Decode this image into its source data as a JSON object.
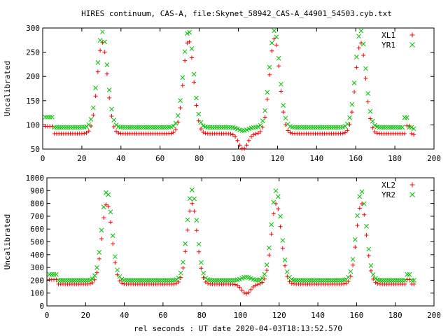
{
  "title": "HIRES continuum, CAS-A, file:Skynet_58942_CAS-A_44901_54503.cyb.txt",
  "xlabel": "rel seconds : UT date 2020-04-03T18:13:52.570",
  "colors": {
    "red": "#ff0000",
    "green": "#00c000"
  },
  "chart_data": [
    {
      "type": "scatter",
      "ylabel": "Uncalibrated",
      "xlim": [
        0,
        200
      ],
      "ylim": [
        50,
        300
      ],
      "xticks": [
        "0",
        "20",
        "40",
        "60",
        "80",
        "100",
        "120",
        "140",
        "160",
        "180",
        "200"
      ],
      "yticks": [
        "50",
        "100",
        "150",
        "200",
        "250",
        "300"
      ],
      "legend_position": "top-right",
      "series": [
        {
          "name": "XL1",
          "marker": "+",
          "color": "#ff0000",
          "baseline": 82,
          "peaks": [
            [
              30.5,
              270
            ],
            [
              74.5,
              275
            ],
            [
              118.5,
              278
            ],
            [
              162.5,
              270
            ]
          ],
          "dip": [
            102.5,
            50
          ],
          "start": 97,
          "end": 80,
          "spike": [
            187,
            98
          ]
        },
        {
          "name": "YR1",
          "marker": "x",
          "color": "#00c000",
          "baseline": 95,
          "peaks": [
            [
              30.5,
              292
            ],
            [
              74.5,
              295
            ],
            [
              118.5,
              295
            ],
            [
              162.5,
              295
            ]
          ],
          "dip": [
            102.5,
            88
          ],
          "start": 116,
          "end": 92,
          "spike": [
            186,
            115
          ]
        }
      ]
    },
    {
      "type": "scatter",
      "ylabel": "Uncalibrated",
      "xlim": [
        0,
        200
      ],
      "ylim": [
        0,
        1000
      ],
      "xticks": [
        "0",
        "20",
        "40",
        "60",
        "80",
        "100",
        "120",
        "140",
        "160",
        "180",
        "200"
      ],
      "yticks": [
        "0",
        "100",
        "200",
        "300",
        "400",
        "500",
        "600",
        "700",
        "800",
        "900",
        "1000"
      ],
      "legend_position": "top-right",
      "series": [
        {
          "name": "XL2",
          "marker": "+",
          "color": "#ff0000",
          "baseline": 170,
          "peaks": [
            [
              31,
              800
            ],
            [
              75,
              800
            ],
            [
              118.5,
              800
            ],
            [
              162.5,
              800
            ]
          ],
          "dip": [
            103,
            95
          ],
          "start": 205,
          "end": 170,
          "spike": [
            187,
            205
          ]
        },
        {
          "name": "YR2",
          "marker": "x",
          "color": "#00c000",
          "baseline": 200,
          "peaks": [
            [
              31,
              895
            ],
            [
              75,
              905
            ],
            [
              118.5,
              900
            ],
            [
              162.5,
              895
            ]
          ],
          "dip": [
            103,
            225
          ],
          "start": 245,
          "end": 200,
          "spike": [
            187,
            245
          ]
        }
      ]
    }
  ]
}
